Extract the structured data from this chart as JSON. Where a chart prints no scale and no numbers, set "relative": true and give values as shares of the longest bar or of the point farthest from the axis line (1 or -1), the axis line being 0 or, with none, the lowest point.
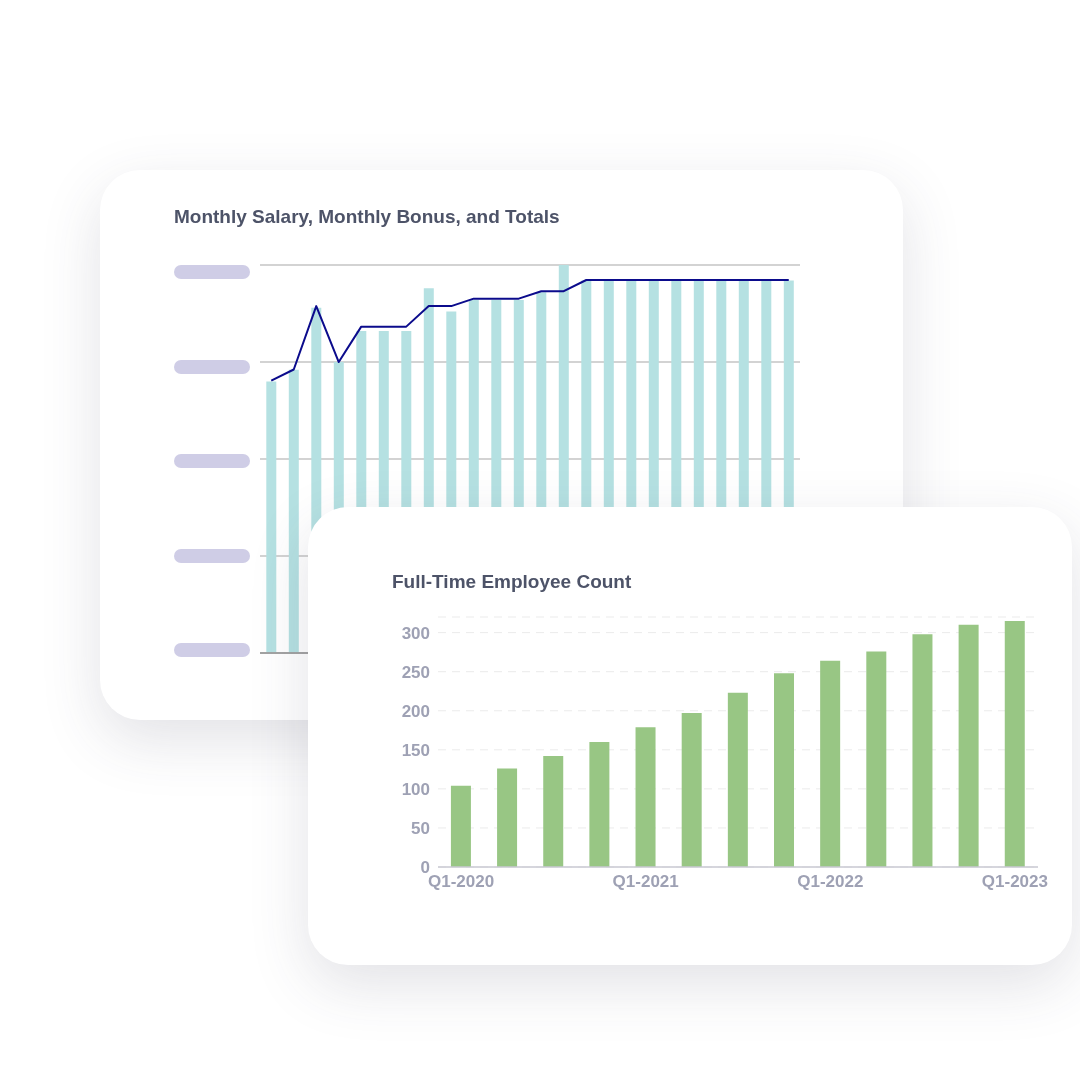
{
  "chart_data": [
    {
      "type": "bar",
      "title": "Monthly Salary, Monthly Bonus, and Totals",
      "relative": true,
      "grid": "y",
      "tick_labels": false,
      "color": "#b5e1e2",
      "categories": [
        null,
        null,
        null,
        null,
        null,
        null,
        null,
        null,
        null,
        null,
        null,
        null,
        null,
        null,
        null,
        null,
        null,
        null,
        null,
        null,
        null,
        null,
        null,
        null
      ],
      "values": [
        0.7,
        0.73,
        0.89,
        0.75,
        0.83,
        0.83,
        0.83,
        0.94,
        0.88,
        0.91,
        0.91,
        0.91,
        0.93,
        1.0,
        0.96,
        0.96,
        0.96,
        0.96,
        0.96,
        0.96,
        0.96,
        0.96,
        0.96,
        0.96
      ]
    },
    {
      "type": "line",
      "relative": true,
      "tick_labels": false,
      "color": "#0b0b8c",
      "marker": "none",
      "categories": [
        null,
        null,
        null,
        null,
        null,
        null,
        null,
        null,
        null,
        null,
        null,
        null,
        null,
        null,
        null,
        null,
        null,
        null,
        null,
        null,
        null,
        null,
        null,
        null
      ],
      "values": [
        0.73,
        0.76,
        0.93,
        0.78,
        0.875,
        0.875,
        0.875,
        0.93,
        0.93,
        0.95,
        0.95,
        0.95,
        0.97,
        0.97,
        1.0,
        1.0,
        1.0,
        1.0,
        1.0,
        1.0,
        1.0,
        1.0,
        1.0,
        1.0
      ]
    },
    {
      "type": "bar",
      "title": "Full-Time Employee Count",
      "grid": "y",
      "color": "#98c684",
      "categories": [
        "Q1-2020",
        null,
        null,
        null,
        "Q1-2021",
        null,
        null,
        null,
        "Q1-2022",
        null,
        null,
        null,
        "Q1-2023"
      ],
      "values": [
        104,
        126,
        142,
        160,
        179,
        197,
        223,
        248,
        264,
        276,
        298,
        310,
        315
      ],
      "ylim": [
        0,
        320
      ],
      "yticks": [
        0,
        50,
        100,
        150,
        200,
        250,
        300
      ]
    }
  ]
}
